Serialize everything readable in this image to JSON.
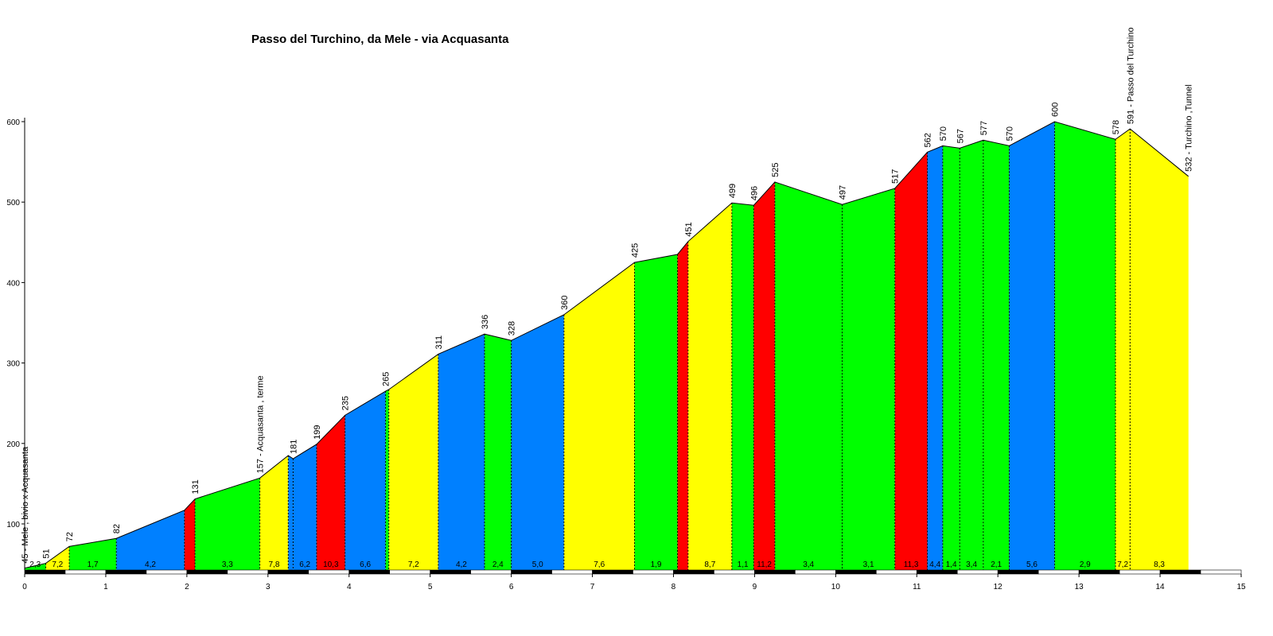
{
  "chart_data": {
    "type": "area",
    "title": "Passo del Turchino, da Mele - via Acquasanta",
    "xlabel": "",
    "ylabel": "",
    "xlim": [
      0,
      15
    ],
    "ylim": [
      40,
      610
    ],
    "x_ticks": [
      "0",
      "1",
      "2",
      "3",
      "4",
      "5",
      "6",
      "7",
      "8",
      "9",
      "10",
      "11",
      "12",
      "13",
      "14",
      "15"
    ],
    "y_ticks": [
      "100",
      "200",
      "300",
      "400",
      "500",
      "600"
    ],
    "y_tick_values": [
      100,
      200,
      300,
      400,
      500,
      600
    ],
    "colors": {
      "green": "#00ff00",
      "yellow": "#ffff00",
      "blue": "#0080ff",
      "red": "#ff0000"
    },
    "profile": [
      {
        "km": 0.0,
        "alt": 45
      },
      {
        "km": 0.26,
        "alt": 51
      },
      {
        "km": 0.55,
        "alt": 72
      },
      {
        "km": 1.13,
        "alt": 82
      },
      {
        "km": 1.97,
        "alt": 117
      },
      {
        "km": 2.1,
        "alt": 131
      },
      {
        "km": 2.9,
        "alt": 157
      },
      {
        "km": 3.25,
        "alt": 185
      },
      {
        "km": 3.31,
        "alt": 181
      },
      {
        "km": 3.6,
        "alt": 199
      },
      {
        "km": 3.95,
        "alt": 235
      },
      {
        "km": 4.45,
        "alt": 265
      },
      {
        "km": 4.49,
        "alt": 267
      },
      {
        "km": 5.1,
        "alt": 311
      },
      {
        "km": 5.67,
        "alt": 336
      },
      {
        "km": 6.0,
        "alt": 328
      },
      {
        "km": 6.65,
        "alt": 360
      },
      {
        "km": 7.52,
        "alt": 425
      },
      {
        "km": 8.05,
        "alt": 435
      },
      {
        "km": 8.18,
        "alt": 451
      },
      {
        "km": 8.72,
        "alt": 499
      },
      {
        "km": 8.99,
        "alt": 496
      },
      {
        "km": 9.25,
        "alt": 525
      },
      {
        "km": 10.08,
        "alt": 497
      },
      {
        "km": 10.73,
        "alt": 517
      },
      {
        "km": 11.13,
        "alt": 562
      },
      {
        "km": 11.32,
        "alt": 570
      },
      {
        "km": 11.53,
        "alt": 567
      },
      {
        "km": 11.82,
        "alt": 577
      },
      {
        "km": 12.14,
        "alt": 570
      },
      {
        "km": 12.7,
        "alt": 600
      },
      {
        "km": 13.45,
        "alt": 578
      },
      {
        "km": 13.63,
        "alt": 591
      },
      {
        "km": 14.35,
        "alt": 532
      }
    ],
    "segments": [
      {
        "grade": "2,3",
        "color": "green"
      },
      {
        "grade": "7,2",
        "color": "yellow"
      },
      {
        "grade": "1,7",
        "color": "green"
      },
      {
        "grade": "4,2",
        "color": "blue"
      },
      {
        "grade": "",
        "color": "red"
      },
      {
        "grade": "3,3",
        "color": "green"
      },
      {
        "grade": "7,8",
        "color": "yellow"
      },
      {
        "grade": "",
        "color": "blue"
      },
      {
        "grade": "6,2",
        "color": "blue"
      },
      {
        "grade": "10,3",
        "color": "red"
      },
      {
        "grade": "6,6",
        "color": "blue"
      },
      {
        "grade": "",
        "color": "green"
      },
      {
        "grade": "7,2",
        "color": "yellow"
      },
      {
        "grade": "4,2",
        "color": "blue"
      },
      {
        "grade": "2,4",
        "color": "green"
      },
      {
        "grade": "5,0",
        "color": "blue"
      },
      {
        "grade": "7,6",
        "color": "yellow"
      },
      {
        "grade": "1,9",
        "color": "green"
      },
      {
        "grade": "",
        "color": "red"
      },
      {
        "grade": "8,7",
        "color": "yellow"
      },
      {
        "grade": "1,1",
        "color": "green"
      },
      {
        "grade": "11,2",
        "color": "red"
      },
      {
        "grade": "3,4",
        "color": "green"
      },
      {
        "grade": "3,1",
        "color": "green"
      },
      {
        "grade": "11,3",
        "color": "red"
      },
      {
        "grade": "4,4",
        "color": "blue"
      },
      {
        "grade": "1,4",
        "color": "green"
      },
      {
        "grade": "3,4",
        "color": "green"
      },
      {
        "grade": "2,1",
        "color": "green"
      },
      {
        "grade": "5,6",
        "color": "blue"
      },
      {
        "grade": "2,9",
        "color": "green"
      },
      {
        "grade": "7,2",
        "color": "yellow"
      },
      {
        "grade": "8,3",
        "color": "yellow"
      }
    ],
    "labels": [
      {
        "km": 0.0,
        "alt": 45,
        "text": "45 - Mele , bivio x Acquasanta"
      },
      {
        "km": 0.26,
        "alt": 51,
        "text": "51"
      },
      {
        "km": 0.55,
        "alt": 72,
        "text": "72"
      },
      {
        "km": 1.13,
        "alt": 82,
        "text": "82"
      },
      {
        "km": 2.1,
        "alt": 131,
        "text": "131"
      },
      {
        "km": 2.9,
        "alt": 157,
        "text": "157 - Acquasanta , terme"
      },
      {
        "km": 3.31,
        "alt": 181,
        "text": "181"
      },
      {
        "km": 3.6,
        "alt": 199,
        "text": "199"
      },
      {
        "km": 3.95,
        "alt": 235,
        "text": "235"
      },
      {
        "km": 4.45,
        "alt": 265,
        "text": "265"
      },
      {
        "km": 5.1,
        "alt": 311,
        "text": "311"
      },
      {
        "km": 5.67,
        "alt": 336,
        "text": "336"
      },
      {
        "km": 6.0,
        "alt": 328,
        "text": "328"
      },
      {
        "km": 6.65,
        "alt": 360,
        "text": "360"
      },
      {
        "km": 7.52,
        "alt": 425,
        "text": "425"
      },
      {
        "km": 8.18,
        "alt": 451,
        "text": "451"
      },
      {
        "km": 8.72,
        "alt": 499,
        "text": "499"
      },
      {
        "km": 8.99,
        "alt": 496,
        "text": "496"
      },
      {
        "km": 9.25,
        "alt": 525,
        "text": "525"
      },
      {
        "km": 10.08,
        "alt": 497,
        "text": "497"
      },
      {
        "km": 10.73,
        "alt": 517,
        "text": "517"
      },
      {
        "km": 11.13,
        "alt": 562,
        "text": "562"
      },
      {
        "km": 11.32,
        "alt": 570,
        "text": "570"
      },
      {
        "km": 11.53,
        "alt": 567,
        "text": "567"
      },
      {
        "km": 11.82,
        "alt": 577,
        "text": "577"
      },
      {
        "km": 12.14,
        "alt": 570,
        "text": "570"
      },
      {
        "km": 12.7,
        "alt": 600,
        "text": "600"
      },
      {
        "km": 13.45,
        "alt": 578,
        "text": "578"
      },
      {
        "km": 13.63,
        "alt": 591,
        "text": "591 - Passo del Turchino"
      },
      {
        "km": 14.35,
        "alt": 532,
        "text": "532 - Turchino ,Tunnel"
      }
    ]
  }
}
